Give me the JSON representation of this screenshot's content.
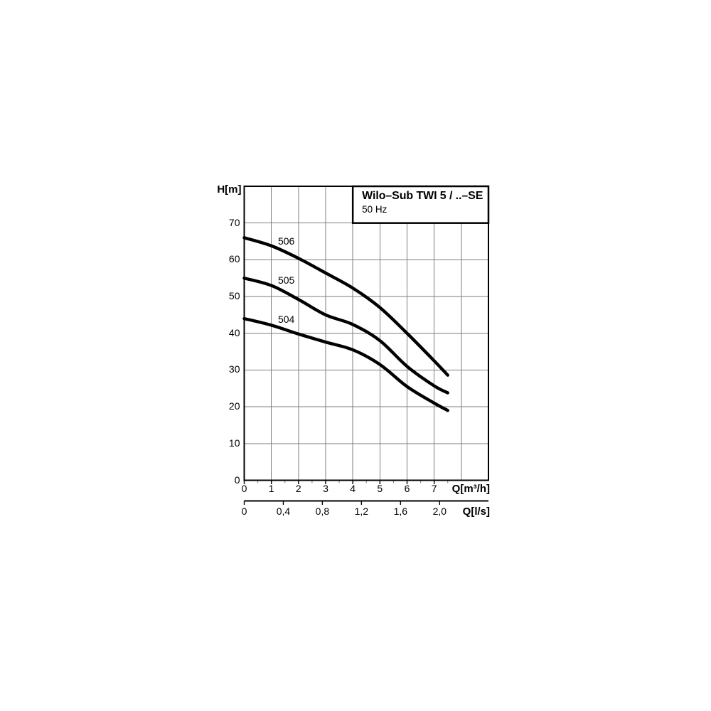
{
  "chart": {
    "title": "Wilo–Sub TWI 5 / ..–SE",
    "subtitle": "50 Hz",
    "y_axis_label": "H[m]",
    "x_axis_label": "Q[m³/h]",
    "x2_axis_label": "Q[l/s]"
  },
  "chart_data": {
    "type": "line",
    "title": "Wilo–Sub TWI 5 / ..–SE",
    "subtitle": "50 Hz",
    "ylabel": "H[m]",
    "xlabel": "Q[m³/h]",
    "x2label": "Q[l/s]",
    "xlim": [
      0,
      9
    ],
    "ylim": [
      0,
      80
    ],
    "grid": true,
    "x_grid_step": 1,
    "y_grid_step": 10,
    "x_ticks_labeled": [
      0,
      1,
      2,
      3,
      4,
      5,
      6,
      7
    ],
    "y_ticks_labeled": [
      0,
      10,
      20,
      30,
      40,
      50,
      60,
      70
    ],
    "x2_unit_factor_to_x1": 3.6,
    "x2_ticks": [
      {
        "value": 0.0,
        "label": "0"
      },
      {
        "value": 0.4,
        "label": "0,4"
      },
      {
        "value": 0.8,
        "label": "0,8"
      },
      {
        "value": 1.2,
        "label": "1,2"
      },
      {
        "value": 1.6,
        "label": "1,6"
      },
      {
        "value": 2.0,
        "label": "2,0"
      }
    ],
    "series": [
      {
        "name": "506",
        "points": [
          [
            0,
            66
          ],
          [
            1,
            63.8
          ],
          [
            2,
            60.4
          ],
          [
            3,
            56.4
          ],
          [
            4,
            52.3
          ],
          [
            5,
            47.0
          ],
          [
            6,
            40.0
          ],
          [
            7,
            32.5
          ],
          [
            7.5,
            28.6
          ]
        ],
        "label_at": [
          1.55,
          65.1
        ]
      },
      {
        "name": "505",
        "points": [
          [
            0,
            55
          ],
          [
            1,
            53.0
          ],
          [
            2,
            49.2
          ],
          [
            3,
            45.0
          ],
          [
            4,
            42.4
          ],
          [
            5,
            38.0
          ],
          [
            6,
            31.0
          ],
          [
            7,
            25.7
          ],
          [
            7.5,
            23.8
          ]
        ],
        "label_at": [
          1.55,
          54.4
        ]
      },
      {
        "name": "504",
        "points": [
          [
            0,
            44
          ],
          [
            1,
            42.2
          ],
          [
            2,
            39.8
          ],
          [
            3,
            37.6
          ],
          [
            4,
            35.5
          ],
          [
            5,
            31.5
          ],
          [
            6,
            25.5
          ],
          [
            7,
            21.0
          ],
          [
            7.5,
            19.0
          ]
        ],
        "label_at": [
          1.55,
          43.8
        ]
      }
    ]
  },
  "colors": {
    "curve": "#000000",
    "grid": "#7d7d7d",
    "border": "#000000",
    "background": "#ffffff",
    "text": "#000000"
  }
}
